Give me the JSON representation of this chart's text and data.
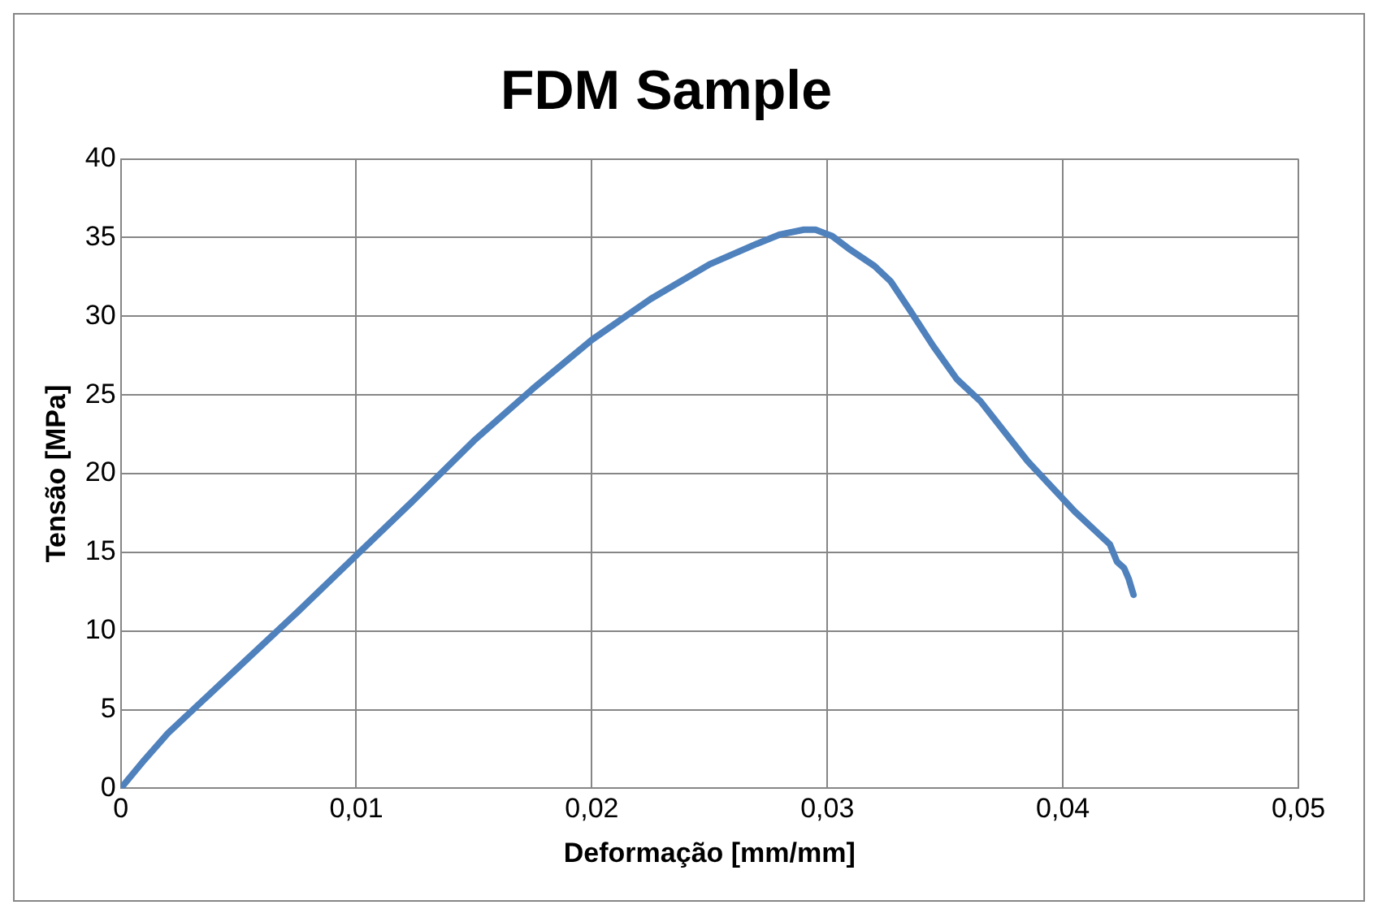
{
  "chart_data": {
    "type": "line",
    "title": "FDM Sample",
    "xlabel": "Deformação [mm/mm]",
    "ylabel": "Tensão [MPa]",
    "series": [
      {
        "color": "#4f81bd",
        "x": [
          0,
          0.001,
          0.002,
          0.0035,
          0.005,
          0.0075,
          0.01,
          0.0125,
          0.015,
          0.0175,
          0.02,
          0.0225,
          0.025,
          0.027,
          0.028,
          0.029,
          0.0295,
          0.0302,
          0.031,
          0.032,
          0.0327,
          0.0335,
          0.0345,
          0.0355,
          0.0365,
          0.0375,
          0.0385,
          0.0395,
          0.0405,
          0.0415,
          0.042,
          0.0423,
          0.0426,
          0.0428,
          0.043
        ],
        "values": [
          0,
          1.8,
          3.5,
          5.6,
          7.7,
          11.2,
          14.8,
          18.4,
          22.1,
          25.4,
          28.5,
          31.1,
          33.3,
          34.6,
          35.2,
          35.5,
          35.5,
          35.1,
          34.2,
          33.2,
          32.2,
          30.4,
          28.1,
          26,
          24.6,
          22.7,
          20.8,
          19.2,
          17.6,
          16.2,
          15.5,
          14.4,
          14,
          13.3,
          12.3
        ]
      }
    ],
    "xlim": [
      0,
      0.05
    ],
    "xticks": [
      {
        "value": 0,
        "label": "0"
      },
      {
        "value": 0.01,
        "label": "0,01"
      },
      {
        "value": 0.02,
        "label": "0,02"
      },
      {
        "value": 0.03,
        "label": "0,03"
      },
      {
        "value": 0.04,
        "label": "0,04"
      },
      {
        "value": 0.05,
        "label": "0,05"
      }
    ],
    "ylim": [
      0,
      40
    ],
    "yticks": [
      0,
      5,
      10,
      15,
      20,
      25,
      30,
      35,
      40
    ],
    "grid": true,
    "legend": false,
    "marker": "none",
    "line_style": "solid"
  }
}
